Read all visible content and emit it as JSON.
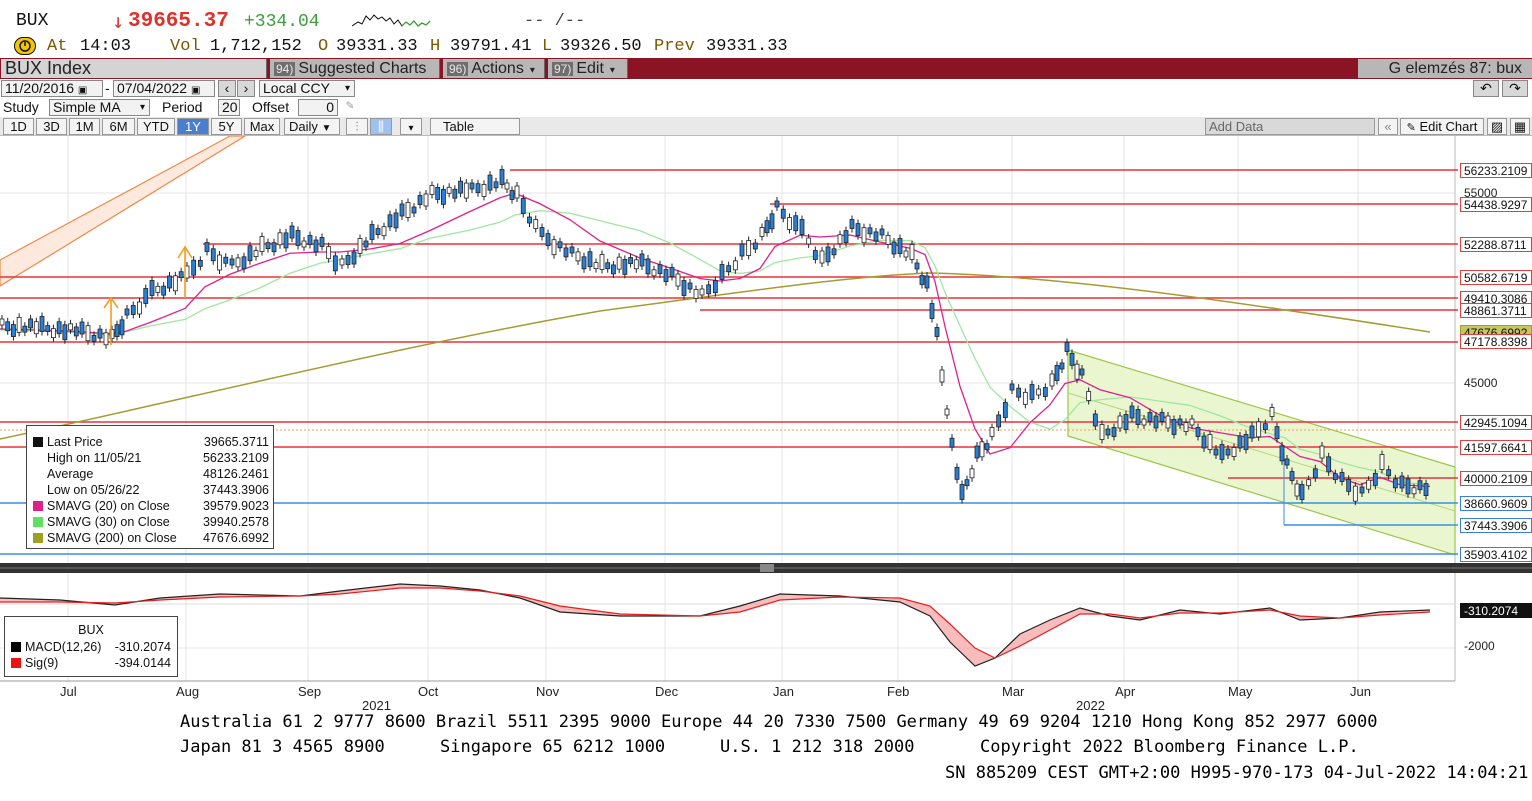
{
  "header": {
    "ticker": "BUX",
    "arrow": "↓",
    "last": "39665.37",
    "change": "+334.04",
    "blank": "-- /--",
    "at_label": "At",
    "time": "14:03",
    "vol_label": "Vol",
    "vol": "1,712,152",
    "open_label": "O",
    "open": "39331.33",
    "high_label": "H",
    "high": "39791.41",
    "low_label": "L",
    "low": "39326.50",
    "prev_label": "Prev",
    "prev": "39331.33"
  },
  "toolbar": {
    "security": "BUX Index",
    "suggested_num": "94)",
    "suggested": "Suggested Charts",
    "actions_num": "96)",
    "actions": "Actions",
    "edit_num": "97)",
    "edit": "Edit",
    "right_title": "G elemzés 87: bux"
  },
  "controls": {
    "start_date": "11/20/2016",
    "dash": "-",
    "end_date": "07/04/2022",
    "currency": "Local CCY",
    "study_label": "Study",
    "study": "Simple MA",
    "period_label": "Period",
    "period": "20",
    "offset_label": "Offset",
    "offset": "0",
    "timeframes": [
      "1D",
      "3D",
      "1M",
      "6M",
      "YTD",
      "1Y",
      "5Y",
      "Max"
    ],
    "frequency": "Daily",
    "table": "Table",
    "add_data": "Add Data",
    "edit_chart": "Edit Chart"
  },
  "price_tags": [
    {
      "label": "56233.2109",
      "color": "red"
    },
    {
      "label": "54438.9297",
      "color": "red"
    },
    {
      "label": "52288.8711",
      "color": "red"
    },
    {
      "label": "50582.6719",
      "color": "red"
    },
    {
      "label": "49410.3086",
      "color": "red"
    },
    {
      "label": "48861.3711",
      "color": "red"
    },
    {
      "label": "47676.6992",
      "color": "olive"
    },
    {
      "label": "47178.8398",
      "color": "red"
    },
    {
      "label": "42945.1094",
      "color": "red"
    },
    {
      "label": "41597.6641",
      "color": "red"
    },
    {
      "label": "40000.2109",
      "color": "red"
    },
    {
      "label": "38660.9609",
      "color": "blue"
    },
    {
      "label": "37443.3906",
      "color": "blue"
    },
    {
      "label": "35903.4102",
      "color": "blue"
    },
    {
      "label": "-310.2074",
      "color": "black"
    }
  ],
  "y_ticks": [
    "55000",
    "45000",
    "-2000"
  ],
  "legend": {
    "rows": [
      {
        "label": "Last Price",
        "value": "39665.3711",
        "color": "#111111"
      },
      {
        "label": "High on 11/05/21",
        "value": "56233.2109",
        "color": "#ffffff"
      },
      {
        "label": "Average",
        "value": "48126.2461",
        "color": "#ffffff"
      },
      {
        "label": "Low on 05/26/22",
        "value": "37443.3906",
        "color": "#ffffff"
      },
      {
        "label": "SMAVG (20)  on Close",
        "value": "39579.9023",
        "color": "#e0208a"
      },
      {
        "label": "SMAVG (30)  on Close",
        "value": "39940.2578",
        "color": "#60e060"
      },
      {
        "label": "SMAVG (200)  on Close",
        "value": "47676.6992",
        "color": "#a0a020"
      }
    ]
  },
  "macd_legend": {
    "title": "BUX",
    "rows": [
      {
        "label": "MACD(12,26)",
        "value": "-310.2074",
        "color": "#000000"
      },
      {
        "label": "Sig(9)",
        "value": "-394.0144",
        "color": "#ee1111"
      }
    ]
  },
  "x_axis": {
    "months": [
      "Jul",
      "Aug",
      "Sep",
      "Oct",
      "Nov",
      "Dec",
      "Jan",
      "Feb",
      "Mar",
      "Apr",
      "May",
      "Jun"
    ],
    "years": [
      "2021",
      "2022"
    ]
  },
  "footer": {
    "line1": "Australia 61 2 9777 8600 Brazil 5511 2395 9000 Europe 44 20 7330 7500 Germany 49 69 9204 1210 Hong Kong 852 2977 6000",
    "line2a": "Japan 81 3 4565 8900",
    "line2b": "Singapore 65 6212 1000",
    "line2c": "U.S. 1 212 318 2000",
    "line2d": "Copyright 2022 Bloomberg Finance L.P.",
    "line3": "SN 885209 CEST GMT+2:00 H995-970-173 04-Jul-2022 14:04:21"
  }
}
